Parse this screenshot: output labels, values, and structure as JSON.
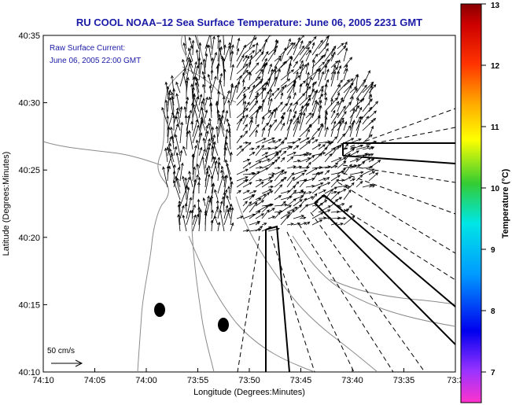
{
  "chart_data": {
    "type": "quiver-map",
    "title": "RU COOL  NOAA–12  Sea Surface Temperature:  June 06, 2005 2231 GMT",
    "annotation_line1": "Raw Surface Current:",
    "annotation_line2": "June 06, 2005 22:00 GMT",
    "xlabel": "Longitude (Degrees:Minutes)",
    "ylabel": "Latitude (Degrees:Minutes)",
    "x_ticks": [
      "74:10",
      "74:05",
      "74:00",
      "73:55",
      "73:50",
      "73:45",
      "73:40",
      "73:35",
      "73:3"
    ],
    "y_ticks": [
      "40:35",
      "40:30",
      "40:25",
      "40:20",
      "40:15",
      "40:10"
    ],
    "xlim": [
      -74.1667,
      -73.5
    ],
    "ylim": [
      40.1667,
      40.5833
    ],
    "colorbar": {
      "label": "Temperature (°C)",
      "ticks": [
        "13",
        "12",
        "11",
        "10",
        "9",
        "8",
        "7"
      ],
      "range": [
        6.5,
        13
      ]
    },
    "scale_label": "50 cm/s",
    "grid": false
  },
  "colors": {
    "title": "#1a1aa6",
    "land_contour": "#888888",
    "arrows": "#000000"
  }
}
